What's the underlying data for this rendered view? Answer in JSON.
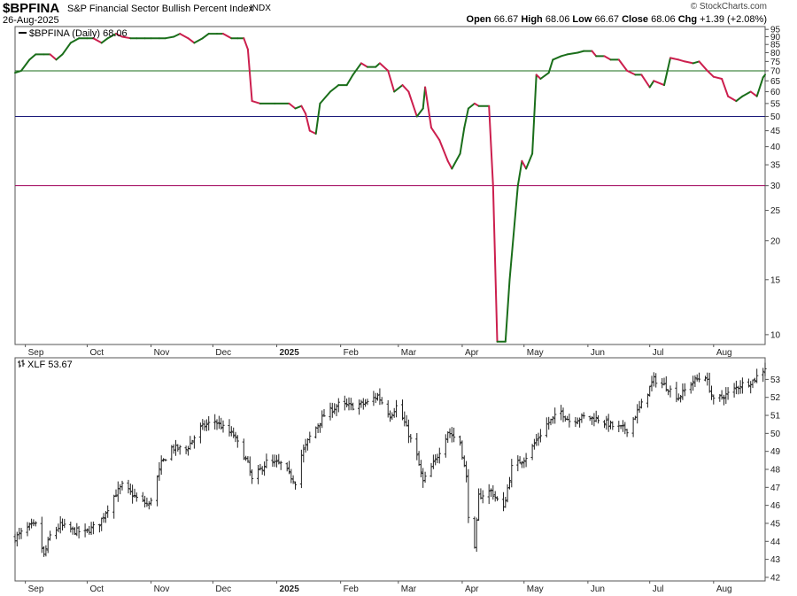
{
  "header": {
    "symbol": "$BPFINA",
    "name": "S&P Financial Sector Bullish Percent Index",
    "exchange": "INDX",
    "date": "26-Aug-2025",
    "credit": "© StockCharts.com",
    "open_label": "Open",
    "open": "66.67",
    "high_label": "High",
    "high": "68.06",
    "low_label": "Low",
    "low": "66.67",
    "close_label": "Close",
    "close": "68.06",
    "chg_label": "Chg",
    "chg": "+1.39 (+2.08%)"
  },
  "colors": {
    "up": "#1a6e1a",
    "down": "#cc1f4e",
    "line70": "#1a6e1a",
    "line50": "#1a1a7a",
    "line30": "#a0005a",
    "price": "#222222",
    "bg": "#ffffff"
  },
  "chart_data": [
    {
      "type": "line",
      "legend": "$BPFINA (Daily) 68.06",
      "yscale": "log",
      "ylim": [
        9.3,
        97
      ],
      "yticks": [
        10,
        15,
        20,
        25,
        30,
        35,
        40,
        45,
        50,
        55,
        60,
        65,
        70,
        75,
        80,
        85,
        90,
        95
      ],
      "reference_lines": [
        70,
        50,
        30
      ],
      "x_month_labels": [
        "Sep",
        "Oct",
        "Nov",
        "Dec",
        "2025",
        "Feb",
        "Mar",
        "Apr",
        "May",
        "Jun",
        "Jul",
        "Aug"
      ],
      "x_month_dates": [
        "2024-09-01",
        "2024-10-01",
        "2024-11-01",
        "2024-12-01",
        "2025-01-01",
        "2025-02-01",
        "2025-03-01",
        "2025-04-01",
        "2025-05-01",
        "2025-06-01",
        "2025-07-01",
        "2025-08-01"
      ],
      "x_range": [
        "2024-08-27",
        "2025-08-26"
      ],
      "points": [
        [
          "2024-08-27",
          69
        ],
        [
          "2024-08-30",
          70
        ],
        [
          "2024-09-03",
          76
        ],
        [
          "2024-09-06",
          79
        ],
        [
          "2024-09-10",
          79
        ],
        [
          "2024-09-13",
          79
        ],
        [
          "2024-09-16",
          76
        ],
        [
          "2024-09-19",
          79
        ],
        [
          "2024-09-23",
          86
        ],
        [
          "2024-09-27",
          89
        ],
        [
          "2024-10-01",
          89
        ],
        [
          "2024-10-04",
          89
        ],
        [
          "2024-10-08",
          86
        ],
        [
          "2024-10-11",
          89
        ],
        [
          "2024-10-15",
          92
        ],
        [
          "2024-10-18",
          90
        ],
        [
          "2024-10-22",
          89
        ],
        [
          "2024-10-25",
          89
        ],
        [
          "2024-10-29",
          89
        ],
        [
          "2024-11-01",
          89
        ],
        [
          "2024-11-05",
          89
        ],
        [
          "2024-11-08",
          89
        ],
        [
          "2024-11-12",
          90
        ],
        [
          "2024-11-15",
          92
        ],
        [
          "2024-11-19",
          89
        ],
        [
          "2024-11-22",
          86
        ],
        [
          "2024-11-26",
          89
        ],
        [
          "2024-11-29",
          92
        ],
        [
          "2024-12-03",
          92
        ],
        [
          "2024-12-06",
          92
        ],
        [
          "2024-12-10",
          89
        ],
        [
          "2024-12-13",
          89
        ],
        [
          "2024-12-16",
          89
        ],
        [
          "2024-12-18",
          82
        ],
        [
          "2024-12-20",
          56
        ],
        [
          "2024-12-24",
          55
        ],
        [
          "2024-12-31",
          55
        ],
        [
          "2025-01-07",
          55
        ],
        [
          "2025-01-10",
          53
        ],
        [
          "2025-01-13",
          54
        ],
        [
          "2025-01-15",
          51
        ],
        [
          "2025-01-17",
          45
        ],
        [
          "2025-01-20",
          44
        ],
        [
          "2025-01-22",
          55
        ],
        [
          "2025-01-27",
          60
        ],
        [
          "2025-01-31",
          63
        ],
        [
          "2025-02-04",
          63
        ],
        [
          "2025-02-07",
          68
        ],
        [
          "2025-02-11",
          74
        ],
        [
          "2025-02-14",
          72
        ],
        [
          "2025-02-18",
          72
        ],
        [
          "2025-02-20",
          74
        ],
        [
          "2025-02-24",
          70
        ],
        [
          "2025-02-27",
          60
        ],
        [
          "2025-03-03",
          63
        ],
        [
          "2025-03-06",
          60
        ],
        [
          "2025-03-10",
          50
        ],
        [
          "2025-03-13",
          53
        ],
        [
          "2025-03-14",
          62
        ],
        [
          "2025-03-17",
          46
        ],
        [
          "2025-03-21",
          42
        ],
        [
          "2025-03-25",
          36
        ],
        [
          "2025-03-27",
          34
        ],
        [
          "2025-03-31",
          38
        ],
        [
          "2025-04-02",
          46
        ],
        [
          "2025-04-04",
          53
        ],
        [
          "2025-04-07",
          55
        ],
        [
          "2025-04-09",
          54
        ],
        [
          "2025-04-14",
          54
        ],
        [
          "2025-04-16",
          30
        ],
        [
          "2025-04-18",
          9.5
        ],
        [
          "2025-04-22",
          9.5
        ],
        [
          "2025-04-24",
          15
        ],
        [
          "2025-04-28",
          30
        ],
        [
          "2025-04-30",
          36
        ],
        [
          "2025-05-02",
          34
        ],
        [
          "2025-05-05",
          38
        ],
        [
          "2025-05-07",
          68
        ],
        [
          "2025-05-09",
          66
        ],
        [
          "2025-05-13",
          69
        ],
        [
          "2025-05-15",
          76
        ],
        [
          "2025-05-19",
          78
        ],
        [
          "2025-05-22",
          79
        ],
        [
          "2025-05-27",
          80
        ],
        [
          "2025-05-30",
          81
        ],
        [
          "2025-06-03",
          81
        ],
        [
          "2025-06-05",
          78
        ],
        [
          "2025-06-09",
          78
        ],
        [
          "2025-06-12",
          76
        ],
        [
          "2025-06-16",
          76
        ],
        [
          "2025-06-20",
          70
        ],
        [
          "2025-06-24",
          68
        ],
        [
          "2025-06-27",
          68
        ],
        [
          "2025-07-01",
          62
        ],
        [
          "2025-07-03",
          65
        ],
        [
          "2025-07-08",
          63
        ],
        [
          "2025-07-11",
          77
        ],
        [
          "2025-07-15",
          76
        ],
        [
          "2025-07-18",
          75
        ],
        [
          "2025-07-22",
          74
        ],
        [
          "2025-07-25",
          75
        ],
        [
          "2025-07-29",
          70
        ],
        [
          "2025-08-01",
          67
        ],
        [
          "2025-08-05",
          66
        ],
        [
          "2025-08-08",
          58
        ],
        [
          "2025-08-12",
          56
        ],
        [
          "2025-08-15",
          58
        ],
        [
          "2025-08-19",
          60
        ],
        [
          "2025-08-22",
          58
        ],
        [
          "2025-08-25",
          66.67
        ],
        [
          "2025-08-26",
          68.06
        ]
      ]
    },
    {
      "type": "ohlc",
      "legend": "XLF 53.67",
      "yscale": "linear",
      "ylim": [
        41.8,
        54.2
      ],
      "yticks": [
        42,
        43,
        44,
        45,
        46,
        47,
        48,
        49,
        50,
        51,
        52,
        53
      ],
      "x_month_labels": [
        "Sep",
        "Oct",
        "Nov",
        "Dec",
        "2025",
        "Feb",
        "Mar",
        "Apr",
        "May",
        "Jun",
        "Jul",
        "Aug"
      ],
      "x_month_dates": [
        "2024-09-01",
        "2024-10-01",
        "2024-11-01",
        "2024-12-01",
        "2025-01-01",
        "2025-02-01",
        "2025-03-01",
        "2025-04-01",
        "2025-05-01",
        "2025-06-01",
        "2025-07-01",
        "2025-08-01"
      ],
      "x_range": [
        "2024-08-27",
        "2025-08-26"
      ],
      "close_path": [
        [
          "2024-08-27",
          44.2
        ],
        [
          "2024-09-03",
          44.8
        ],
        [
          "2024-09-06",
          44.9
        ],
        [
          "2024-09-10",
          43.2
        ],
        [
          "2024-09-13",
          44.3
        ],
        [
          "2024-09-18",
          44.9
        ],
        [
          "2024-09-24",
          44.6
        ],
        [
          "2024-09-30",
          44.5
        ],
        [
          "2024-10-07",
          45.0
        ],
        [
          "2024-10-14",
          46.5
        ],
        [
          "2024-10-18",
          47.1
        ],
        [
          "2024-10-25",
          46.4
        ],
        [
          "2024-10-31",
          46.0
        ],
        [
          "2024-11-06",
          48.3
        ],
        [
          "2024-11-11",
          49.2
        ],
        [
          "2024-11-18",
          49.1
        ],
        [
          "2024-11-25",
          50.3
        ],
        [
          "2024-12-02",
          50.7
        ],
        [
          "2024-12-06",
          50.3
        ],
        [
          "2024-12-11",
          49.9
        ],
        [
          "2024-12-18",
          48.3
        ],
        [
          "2024-12-20",
          47.4
        ],
        [
          "2024-12-27",
          48.4
        ],
        [
          "2025-01-03",
          48.3
        ],
        [
          "2025-01-10",
          47.3
        ],
        [
          "2025-01-13",
          48.8
        ],
        [
          "2025-01-17",
          49.8
        ],
        [
          "2025-01-24",
          51.0
        ],
        [
          "2025-01-31",
          51.6
        ],
        [
          "2025-02-07",
          51.5
        ],
        [
          "2025-02-14",
          51.7
        ],
        [
          "2025-02-19",
          52.1
        ],
        [
          "2025-02-25",
          51.0
        ],
        [
          "2025-02-28",
          51.5
        ],
        [
          "2025-03-04",
          50.6
        ],
        [
          "2025-03-10",
          48.7
        ],
        [
          "2025-03-13",
          47.3
        ],
        [
          "2025-03-19",
          48.5
        ],
        [
          "2025-03-25",
          50.1
        ],
        [
          "2025-03-31",
          49.5
        ],
        [
          "2025-04-03",
          47.5
        ],
        [
          "2025-04-04",
          45.5
        ],
        [
          "2025-04-07",
          43.5
        ],
        [
          "2025-04-09",
          46.5
        ],
        [
          "2025-04-15",
          46.8
        ],
        [
          "2025-04-21",
          45.8
        ],
        [
          "2025-04-25",
          48.1
        ],
        [
          "2025-05-02",
          48.7
        ],
        [
          "2025-05-12",
          50.5
        ],
        [
          "2025-05-19",
          51.2
        ],
        [
          "2025-05-23",
          50.7
        ],
        [
          "2025-05-30",
          50.9
        ],
        [
          "2025-06-06",
          50.8
        ],
        [
          "2025-06-13",
          50.4
        ],
        [
          "2025-06-20",
          50.2
        ],
        [
          "2025-06-27",
          51.6
        ],
        [
          "2025-07-03",
          53.0
        ],
        [
          "2025-07-09",
          52.6
        ],
        [
          "2025-07-15",
          52.0
        ],
        [
          "2025-07-22",
          52.9
        ],
        [
          "2025-07-28",
          53.2
        ],
        [
          "2025-08-01",
          51.8
        ],
        [
          "2025-08-08",
          52.2
        ],
        [
          "2025-08-14",
          52.7
        ],
        [
          "2025-08-20",
          52.9
        ],
        [
          "2025-08-26",
          53.67
        ]
      ]
    }
  ]
}
